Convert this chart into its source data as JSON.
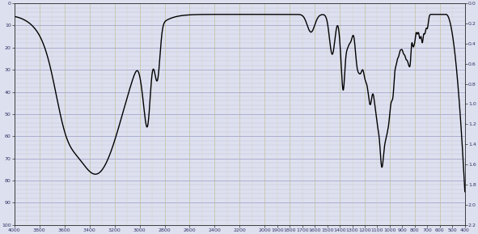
{
  "xlim": [
    4000,
    400
  ],
  "ylim_top": 0,
  "ylim_bottom": 100,
  "right_ylim_top": 0.0,
  "right_ylim_bottom": 2.2,
  "x_major_ticks": [
    4000,
    3800,
    3600,
    3400,
    3200,
    3000,
    2800,
    2600,
    2400,
    2200,
    2000,
    1900,
    1800,
    1700,
    1600,
    1500,
    1400,
    1300,
    1200,
    1100,
    1000,
    900,
    800,
    700,
    600,
    500,
    400
  ],
  "x_minor_ticks_step": 100,
  "y_major_ticks_left": [
    0,
    10,
    20,
    30,
    40,
    50,
    60,
    70,
    80,
    90,
    100
  ],
  "y_major_ticks_right": [
    0.0,
    0.2,
    0.4,
    0.6,
    0.8,
    1.0,
    1.2,
    1.4,
    1.6,
    1.8,
    2.0,
    2.2
  ],
  "background_color": "#dde0ee",
  "grid_major_h_color": "#8888bb",
  "grid_minor_h_color": "#aaaacc",
  "grid_major_v_color": "#bbbb88",
  "grid_minor_v_color": "#cccc99",
  "line_color": "#000000",
  "line_width": 1.0,
  "tick_fontsize": 4.5,
  "tick_label_color": "#333366"
}
